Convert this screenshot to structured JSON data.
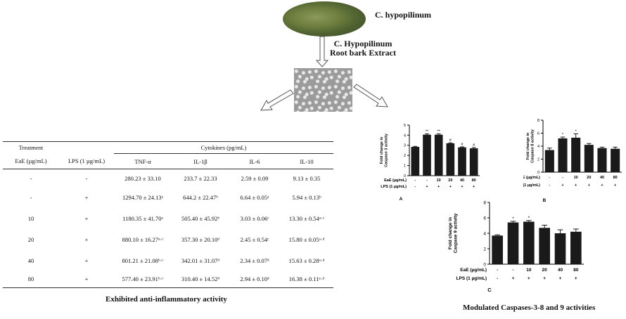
{
  "header": {
    "plant_name": "C. hypopilinum",
    "extract_label_line1": "C. Hypopilinum",
    "extract_label_line2": "Root bark Extract"
  },
  "table": {
    "col_treatment": "Treatment",
    "col_group": "Cytokines (pg/mL)",
    "col_eae": "EaE (µg/mL)",
    "col_lps": "LPS (1 µg/mL)",
    "cytokines": [
      "TNF-α",
      "IL-1β",
      "IL-6",
      "IL-10"
    ],
    "rows": [
      {
        "eae": "-",
        "lps": "-",
        "tnf": "280.23 ± 33.10",
        "il1b": "233.7 ± 22.33",
        "il6": "2.59 ± 0.09",
        "il10": "9.13 ± 0.35"
      },
      {
        "eae": "-",
        "lps": "+",
        "tnf": "1294.70 ± 24.13ᵃ",
        "il1b": "644.2 ± 22.47ᵇ",
        "il6": "6.64 ± 0.05ᵃ",
        "il10": "5.94 ± 0.13ᵇ"
      },
      {
        "eae": "10",
        "lps": "+",
        "tnf": "1180.35 ± 41.70ᵃ",
        "il1b": "505.40 ± 45.92ᵇ",
        "il6": "3.03 ± 0.06ᶜ",
        "il10": "13.30 ± 0.54ᵃ·ᶜ"
      },
      {
        "eae": "20",
        "lps": "+",
        "tnf": "880.10 ± 16.27ᵃ·ᶜ",
        "il1b": "357.30 ± 20.10ᵈ",
        "il6": "2.45 ± 0.54ᶜ",
        "il10": "15.80 ± 0.05ᵃ·ᵈ"
      },
      {
        "eae": "40",
        "lps": "+",
        "tnf": "801.21 ± 21.08ᵇ·ᶜ",
        "il1b": "342.01 ± 31.07ᵈ",
        "il6": "2.34 ± 0.07ᵈ",
        "il10": "15.63 ± 0.28ᵃ·ᵈ"
      },
      {
        "eae": "80",
        "lps": "+",
        "tnf": "577.40 ± 23.91ᵇ·ᶜ",
        "il1b": "310.40 ± 14.52ᵈ",
        "il6": "2.94 ± 0.10ᵈ",
        "il10": "16.38 ± 0.11ᵃ·ᵈ"
      }
    ],
    "caption": "Exhibited anti-inflammatory activity"
  },
  "captions": {
    "caspase_caption": "Modulated Caspases-3-8 and 9 activities"
  },
  "chart_data": [
    {
      "type": "bar",
      "panel": "A",
      "ylabel": "Fold change in Caspase 3 activity",
      "ylim": [
        0,
        5
      ],
      "yticks": [
        0,
        1,
        2,
        3,
        4,
        5
      ],
      "row1_label": "EaE (µg/mL)",
      "row2_label": "LPS (1 µg/mL)",
      "categories_eae": [
        "-",
        "-",
        "10",
        "20",
        "40",
        "80"
      ],
      "categories_lps": [
        "-",
        "+",
        "+",
        "+",
        "+",
        "+"
      ],
      "values": [
        2.85,
        4.05,
        4.05,
        3.2,
        2.8,
        2.7
      ],
      "errors": [
        0.05,
        0.08,
        0.08,
        0.05,
        0.05,
        0.08
      ],
      "annotations": [
        "",
        "**",
        "**",
        "#",
        "#",
        "#"
      ]
    },
    {
      "type": "bar",
      "panel": "B",
      "ylabel": "Fold change in Caspase 8 activity",
      "ylim": [
        0,
        8
      ],
      "yticks": [
        0,
        2,
        4,
        6,
        8
      ],
      "row1_label": "EaE (µg/mL)",
      "row2_label": "LPS (1 µg/mL)",
      "categories_eae": [
        "-",
        "-",
        "10",
        "20",
        "40",
        "80"
      ],
      "categories_lps": [
        "-",
        "+",
        "+",
        "+",
        "+",
        "+"
      ],
      "values": [
        3.4,
        5.2,
        5.3,
        4.2,
        3.7,
        3.6
      ],
      "errors": [
        0.3,
        0.2,
        0.6,
        0.2,
        0.15,
        0.25
      ],
      "annotations": [
        "",
        "*",
        "*",
        "",
        "",
        ""
      ]
    },
    {
      "type": "bar",
      "panel": "C",
      "ylabel": "Fold change in Caspase 9 activity",
      "ylim": [
        0,
        8
      ],
      "yticks": [
        0,
        2,
        4,
        6,
        8
      ],
      "row1_label": "EaE (µg/mL)",
      "row2_label": "LPS (1 µg/mL)",
      "categories_eae": [
        "-",
        "-",
        "10",
        "20",
        "40",
        "80"
      ],
      "categories_lps": [
        "-",
        "+",
        "+",
        "+",
        "+",
        "+"
      ],
      "values": [
        3.7,
        5.4,
        5.5,
        4.7,
        4.0,
        4.2
      ],
      "errors": [
        0.1,
        0.15,
        0.15,
        0.35,
        0.45,
        0.35
      ],
      "annotations": [
        "",
        "*",
        "*",
        "",
        "",
        ""
      ]
    }
  ]
}
